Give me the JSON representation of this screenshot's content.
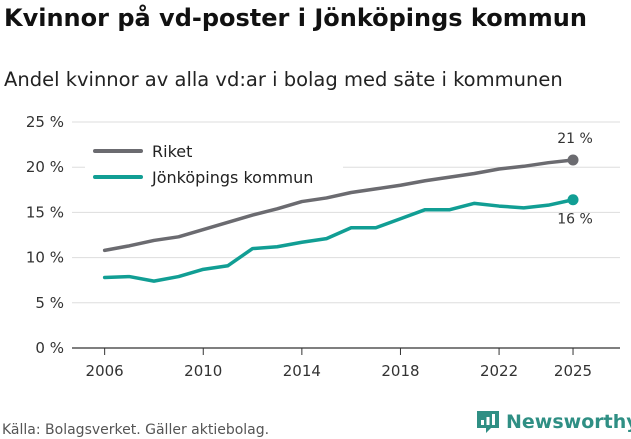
{
  "header": {
    "title": "Kvinnor på vd-poster i Jönköpings kommun",
    "subtitle": "Andel kvinnor av alla vd:ar i bolag med säte i kommunen"
  },
  "footer": {
    "source": "Källa: Bolagsverket. Gäller aktiebolag.",
    "brand": "Newsworthy"
  },
  "colors": {
    "riket": "#6b6b70",
    "kommun": "#119e94",
    "grid": "#dddddd",
    "brand": "#2f8f84"
  },
  "chart_data": {
    "type": "line",
    "title": "Kvinnor på vd-poster i Jönköpings kommun",
    "subtitle": "Andel kvinnor av alla vd:ar i bolag med säte i kommunen",
    "xlabel": "",
    "ylabel": "",
    "x": [
      2006,
      2007,
      2008,
      2009,
      2010,
      2011,
      2012,
      2013,
      2014,
      2015,
      2016,
      2017,
      2018,
      2019,
      2020,
      2021,
      2022,
      2023,
      2024,
      2025
    ],
    "xticks": [
      2006,
      2010,
      2014,
      2018,
      2022,
      2025
    ],
    "xlim": [
      2005,
      2026.5
    ],
    "ylim": [
      0,
      25
    ],
    "yticks": [
      0,
      5,
      10,
      15,
      20,
      25
    ],
    "ytick_labels": [
      "0 %",
      "5 %",
      "10 %",
      "15 %",
      "20 %",
      "25 %"
    ],
    "grid": true,
    "legend_position": "top-left",
    "series": [
      {
        "name": "Riket",
        "color": "#6b6b70",
        "values": [
          10.8,
          11.3,
          11.9,
          12.3,
          13.1,
          13.9,
          14.7,
          15.4,
          16.2,
          16.6,
          17.2,
          17.6,
          18.0,
          18.5,
          18.9,
          19.3,
          19.8,
          20.1,
          20.5,
          20.8
        ],
        "end_label": "21 %",
        "end_label_position": "above"
      },
      {
        "name": "Jönköpings kommun",
        "color": "#119e94",
        "values": [
          7.8,
          7.9,
          7.4,
          7.9,
          8.7,
          9.1,
          11.0,
          11.2,
          11.7,
          12.1,
          13.3,
          13.3,
          14.3,
          15.3,
          15.3,
          16.0,
          15.7,
          15.5,
          15.8,
          16.4
        ],
        "end_label": "16 %",
        "end_label_position": "below"
      }
    ]
  }
}
